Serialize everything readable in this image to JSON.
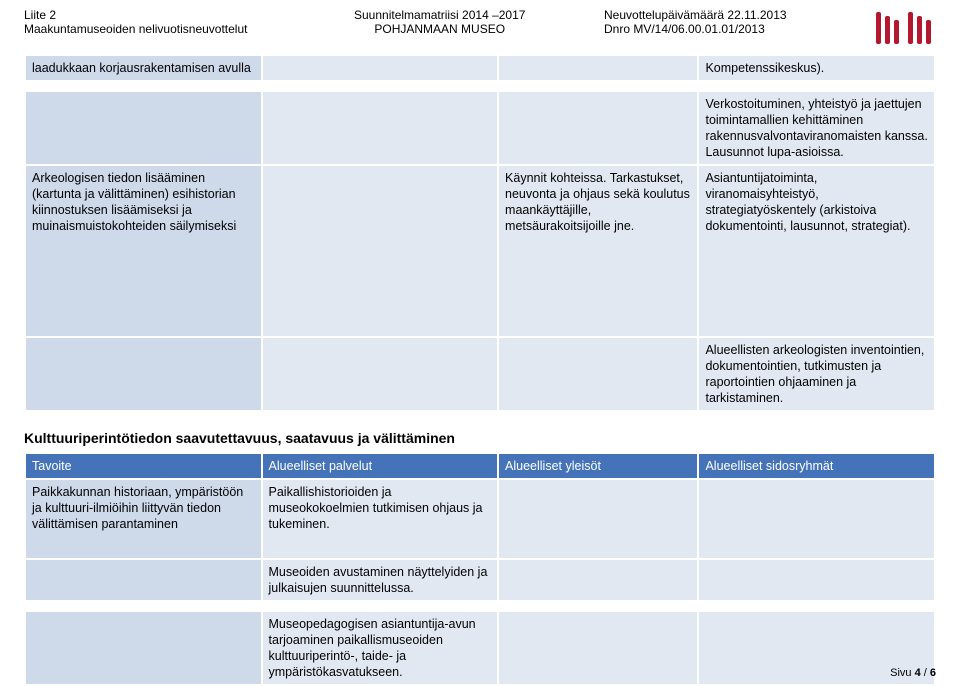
{
  "header": {
    "attachment": "Liite 2",
    "subtitle_left": "Maakuntamuseoiden nelivuotisneuvottelut",
    "title_mid_1": "Suunnitelmamatriisi 2014 –2017",
    "title_mid_2": "POHJANMAAN MUSEO",
    "right_1": "Neuvottelupäivämäärä 22.11.2013",
    "right_2": "Dnro MV/14/06.00.01.01/2013"
  },
  "table1": {
    "r0": {
      "a": "laadukkaan korjausrakentamisen avulla",
      "b": "",
      "c": "",
      "d": "Kompetenssikeskus)."
    },
    "r1": {
      "a": "",
      "b": "",
      "c": "",
      "d": "Verkostoituminen, yhteistyö ja jaettujen toimintamallien kehittäminen rakennusvalvontaviranomaisten kanssa. Lausunnot lupa-asioissa."
    },
    "r2": {
      "a": "Arkeologisen tiedon lisääminen (kartunta ja välittäminen) esihistorian kiinnostuksen lisäämiseksi ja muinaismuistokohteiden säilymiseksi",
      "b": "",
      "c": "Käynnit kohteissa. Tarkastukset, neuvonta ja ohjaus sekä koulutus maankäyttäjille, metsäurakoitsijoille jne.",
      "d": "Asiantuntijatoiminta, viranomaisyhteistyö, strategiatyöskentely (arkistoiva dokumentointi, lausunnot, strategiat)."
    },
    "r3": {
      "a": "",
      "b": "",
      "c": "",
      "d": "Alueellisten arkeologisten inventointien, dokumentointien, tutkimusten ja raportointien ohjaaminen ja tarkistaminen."
    }
  },
  "section2_title": "Kulttuuriperintötiedon saavutettavuus, saatavuus ja välittäminen",
  "table2": {
    "head": {
      "a": "Tavoite",
      "b": "Alueelliset palvelut",
      "c": "Alueelliset yleisöt",
      "d": "Alueelliset sidosryhmät"
    },
    "r0": {
      "a": "Paikkakunnan historiaan, ympäristöön ja kulttuuri-ilmiöihin liittyvän tiedon välittämisen parantaminen",
      "b": "Paikallishistorioiden ja museokokoelmien tutkimisen ohjaus ja tukeminen.",
      "c": "",
      "d": ""
    },
    "r1": {
      "a": "",
      "b": "Museoiden avustaminen näyttelyiden ja julkaisujen suunnittelussa.",
      "c": "",
      "d": ""
    },
    "r2": {
      "a": "",
      "b": "Museopedagogisen asiantuntija-avun tarjoaminen paikallismuseoiden kulttuuriperintö-, taide- ja ympäristökasvatukseen.",
      "c": "",
      "d": ""
    }
  },
  "page": {
    "label": "Sivu ",
    "current": "4",
    "sep": " / ",
    "total": "6"
  }
}
